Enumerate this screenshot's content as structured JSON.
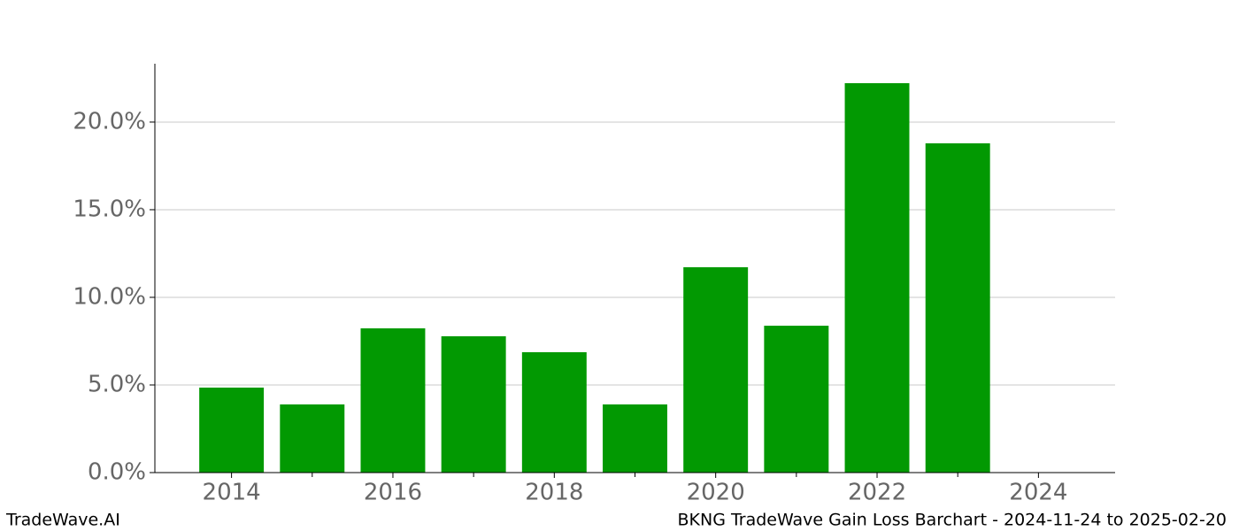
{
  "chart_data": {
    "type": "bar",
    "x": [
      2014,
      2015,
      2016,
      2017,
      2018,
      2019,
      2020,
      2021,
      2022,
      2023
    ],
    "values": [
      4.85,
      3.89,
      8.23,
      7.78,
      6.87,
      3.89,
      11.72,
      8.38,
      22.22,
      18.79
    ],
    "color": "#029902",
    "xlim": [
      2013.05,
      2024.95
    ],
    "xticks": [
      2014,
      2016,
      2018,
      2020,
      2022,
      2024
    ],
    "xminorticks": [
      2015,
      2017,
      2019,
      2021,
      2023
    ],
    "ylim": [
      0,
      23.33
    ],
    "yticks": [
      {
        "value": 0,
        "label": "0.0%"
      },
      {
        "value": 5,
        "label": "5.0%"
      },
      {
        "value": 10,
        "label": "10.0%"
      },
      {
        "value": 15,
        "label": "15.0%"
      },
      {
        "value": 20,
        "label": "20.0%"
      }
    ],
    "grid": true,
    "footer_left": "TradeWave.AI",
    "footer_right": "BKNG TradeWave Gain Loss Barchart - 2024-11-24 to 2025-02-20"
  }
}
